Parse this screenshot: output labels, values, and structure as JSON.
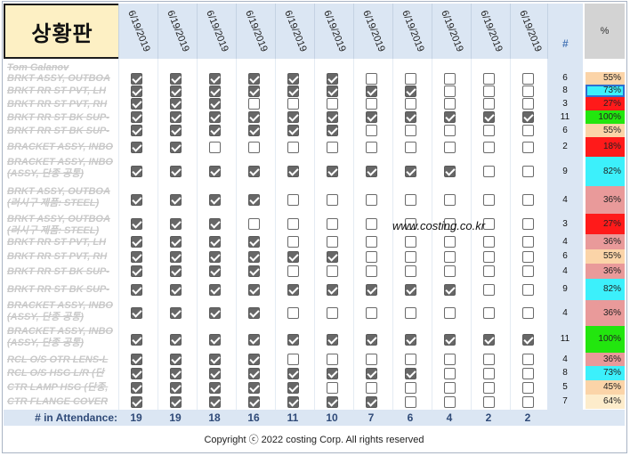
{
  "title": "상황판",
  "dates": [
    "6/19/2019",
    "6/19/2019",
    "6/19/2019",
    "6/19/2019",
    "6/19/2019",
    "6/19/2019",
    "6/19/2019",
    "6/19/2019",
    "6/19/2019",
    "6/19/2019",
    "6/19/2019"
  ],
  "count_header": "#",
  "percent_header": "%",
  "rows": [
    {
      "name": "Tom Galanov",
      "count": "",
      "pct": "",
      "color": "",
      "checks": []
    },
    {
      "name": "BRKT ASSY, OUTBOA",
      "count": "6",
      "pct": "55%",
      "color": "#fbd4a8",
      "checks": [
        1,
        1,
        1,
        1,
        1,
        1,
        0,
        0,
        0,
        0,
        0
      ]
    },
    {
      "name": "BRKT RR ST PVT, LH",
      "count": "8",
      "pct": "73%",
      "color": "#3cf0fb",
      "checks": [
        1,
        1,
        1,
        1,
        1,
        1,
        1,
        1,
        0,
        0,
        0
      ]
    },
    {
      "name": "BRKT RR ST PVT, RH",
      "count": "3",
      "pct": "27%",
      "color": "#ff1a1a",
      "checks": [
        1,
        1,
        1,
        0,
        0,
        0,
        0,
        0,
        0,
        0,
        0
      ]
    },
    {
      "name": "BRKT RR ST BK SUP-",
      "count": "11",
      "pct": "100%",
      "color": "#22e60e",
      "checks": [
        1,
        1,
        1,
        1,
        1,
        1,
        1,
        1,
        1,
        1,
        1
      ]
    },
    {
      "name": "BRKT RR ST BK SUP-",
      "count": "6",
      "pct": "55%",
      "color": "#fbd4a8",
      "checks": [
        1,
        1,
        1,
        1,
        1,
        1,
        0,
        0,
        0,
        0,
        0
      ]
    },
    {
      "name": "BRACKET ASSY, INBO",
      "count": "2",
      "pct": "18%",
      "color": "#ff1a1a",
      "checks": [
        1,
        1,
        0,
        0,
        0,
        0,
        0,
        0,
        0,
        0,
        0
      ]
    },
    {
      "name": "BRACKET ASSY, INBO",
      "name2": "(ASSY, 단종 공통)",
      "count": "9",
      "pct": "82%",
      "color": "#3cf0fb",
      "checks": [
        1,
        1,
        1,
        1,
        1,
        1,
        1,
        1,
        1,
        0,
        0
      ]
    },
    {
      "name": "BRKT ASSY, OUTBOA",
      "name2": "(러시구 제품: STEEL)",
      "count": "4",
      "pct": "36%",
      "color": "#e99a9a",
      "checks": [
        1,
        1,
        1,
        1,
        0,
        0,
        0,
        0,
        0,
        0,
        0
      ]
    },
    {
      "name": "BRKT ASSY, OUTBOA",
      "name2": "(러시구 제품: STEEL)",
      "count": "3",
      "pct": "27%",
      "color": "#ff1a1a",
      "checks": [
        1,
        1,
        1,
        0,
        0,
        0,
        0,
        0,
        0,
        0,
        0
      ]
    },
    {
      "name": "BRKT RR ST PVT, LH",
      "count": "4",
      "pct": "36%",
      "color": "#e99a9a",
      "checks": [
        1,
        1,
        1,
        1,
        0,
        0,
        0,
        0,
        0,
        0,
        0
      ]
    },
    {
      "name": "BRKT RR ST PVT, RH",
      "count": "6",
      "pct": "55%",
      "color": "#fbd4a8",
      "checks": [
        1,
        1,
        1,
        1,
        1,
        1,
        0,
        0,
        0,
        0,
        0
      ]
    },
    {
      "name": "BRKT RR ST BK SUP-",
      "count": "4",
      "pct": "36%",
      "color": "#e99a9a",
      "checks": [
        1,
        1,
        1,
        1,
        0,
        0,
        0,
        0,
        0,
        0,
        0
      ]
    },
    {
      "name": "BRKT RR ST BK SUP-",
      "count": "9",
      "pct": "82%",
      "color": "#3cf0fb",
      "checks": [
        1,
        1,
        1,
        1,
        1,
        1,
        1,
        1,
        1,
        0,
        0
      ]
    },
    {
      "name": "BRACKET ASSY, INBO",
      "name2": "(ASSY, 단종 공통)",
      "count": "4",
      "pct": "36%",
      "color": "#e99a9a",
      "checks": [
        1,
        1,
        1,
        1,
        0,
        0,
        0,
        0,
        0,
        0,
        0
      ]
    },
    {
      "name": "BRACKET ASSY, INBO",
      "name2": "(ASSY, 단종 공통)",
      "count": "11",
      "pct": "100%",
      "color": "#22e60e",
      "checks": [
        1,
        1,
        1,
        1,
        1,
        1,
        1,
        1,
        1,
        1,
        1
      ]
    },
    {
      "name": "RCL O/S OTR LENS-L",
      "count": "4",
      "pct": "36%",
      "color": "#e99a9a",
      "checks": [
        1,
        1,
        1,
        1,
        0,
        0,
        0,
        0,
        0,
        0,
        0
      ]
    },
    {
      "name": "RCL O/S HSG L/R (단",
      "count": "8",
      "pct": "73%",
      "color": "#3cf0fb",
      "checks": [
        1,
        1,
        1,
        1,
        1,
        1,
        1,
        1,
        0,
        0,
        0
      ]
    },
    {
      "name": "CTR LAMP HSG (단종,",
      "count": "5",
      "pct": "45%",
      "color": "#fbd4a8",
      "checks": [
        1,
        1,
        1,
        1,
        1,
        0,
        0,
        0,
        0,
        0,
        0
      ]
    },
    {
      "name": "CTR FLANGE COVER",
      "count": "7",
      "pct": "64%",
      "color": "#fdeccb",
      "checks": [
        1,
        1,
        1,
        1,
        1,
        1,
        1,
        0,
        0,
        0,
        0
      ]
    }
  ],
  "attendance_label": "# in Attendance:",
  "attendance": [
    "19",
    "19",
    "18",
    "16",
    "11",
    "10",
    "7",
    "6",
    "4",
    "2",
    "2"
  ],
  "watermark": "www.costing.co.kr",
  "footer": "Copyright ⓒ 2022 costing Corp. All rights reserved"
}
